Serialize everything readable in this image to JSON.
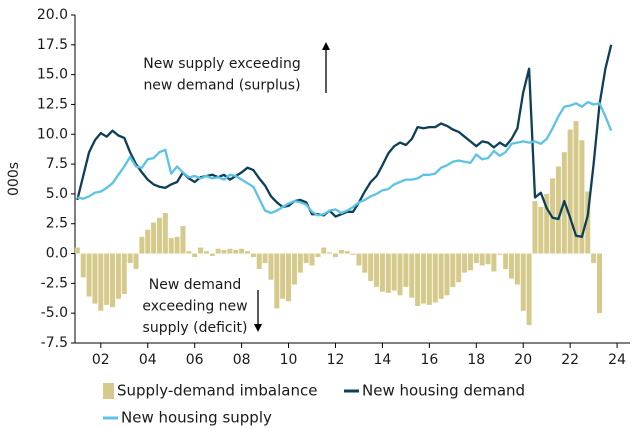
{
  "chart_data": {
    "type": "bar-line",
    "ylabel": "000s",
    "x": [
      2001.0,
      2001.25,
      2001.5,
      2001.75,
      2002.0,
      2002.25,
      2002.5,
      2002.75,
      2003.0,
      2003.25,
      2003.5,
      2003.75,
      2004.0,
      2004.25,
      2004.5,
      2004.75,
      2005.0,
      2005.25,
      2005.5,
      2005.75,
      2006.0,
      2006.25,
      2006.5,
      2006.75,
      2007.0,
      2007.25,
      2007.5,
      2007.75,
      2008.0,
      2008.25,
      2008.5,
      2008.75,
      2009.0,
      2009.25,
      2009.5,
      2009.75,
      2010.0,
      2010.25,
      2010.5,
      2010.75,
      2011.0,
      2011.25,
      2011.5,
      2011.75,
      2012.0,
      2012.25,
      2012.5,
      2012.75,
      2013.0,
      2013.25,
      2013.5,
      2013.75,
      2014.0,
      2014.25,
      2014.5,
      2014.75,
      2015.0,
      2015.25,
      2015.5,
      2015.75,
      2016.0,
      2016.25,
      2016.5,
      2016.75,
      2017.0,
      2017.25,
      2017.5,
      2017.75,
      2018.0,
      2018.25,
      2018.5,
      2018.75,
      2019.0,
      2019.25,
      2019.5,
      2019.75,
      2020.0,
      2020.25,
      2020.5,
      2020.75,
      2021.0,
      2021.25,
      2021.5,
      2021.75,
      2022.0,
      2022.25,
      2022.5,
      2022.75,
      2023.0,
      2023.25,
      2023.5,
      2023.75
    ],
    "series": [
      {
        "name": "Supply-demand imbalance",
        "kind": "bar",
        "color": "#d5ca8b",
        "values": [
          0.5,
          -2.0,
          -3.6,
          -4.2,
          -4.8,
          -4.3,
          -4.5,
          -3.8,
          -3.4,
          -0.8,
          -1.3,
          1.4,
          2.0,
          2.6,
          3.0,
          3.4,
          1.3,
          1.4,
          2.3,
          0.2,
          -0.3,
          0.5,
          0.2,
          -0.2,
          0.4,
          0.3,
          0.4,
          0.3,
          0.4,
          0.2,
          -0.3,
          -1.3,
          -0.8,
          -2.2,
          -4.6,
          -3.8,
          -4.0,
          -2.6,
          -1.6,
          -0.8,
          -1.0,
          -0.3,
          0.5,
          0.1,
          -0.3,
          0.3,
          0.2,
          -0.1,
          -1.0,
          -1.6,
          -2.3,
          -2.8,
          -3.2,
          -3.3,
          -3.1,
          -3.5,
          -2.8,
          -3.7,
          -4.4,
          -4.2,
          -4.3,
          -4.1,
          -3.8,
          -3.5,
          -2.8,
          -2.4,
          -1.6,
          -1.4,
          -0.8,
          -1.0,
          -0.9,
          -1.5,
          -0.1,
          -1.3,
          -2.1,
          -2.6,
          -4.8,
          -6.0,
          4.4,
          3.9,
          5.0,
          6.3,
          7.3,
          8.5,
          10.4,
          11.1,
          9.5,
          5.2,
          -0.8,
          -5.0,
          null,
          null
        ]
      },
      {
        "name": "New housing demand",
        "kind": "line",
        "color": "#0d3f58",
        "values": [
          4.5,
          6.5,
          8.5,
          9.5,
          10.1,
          9.8,
          10.3,
          9.9,
          9.7,
          8.5,
          7.5,
          6.8,
          6.2,
          5.8,
          5.6,
          5.5,
          5.8,
          6.0,
          6.8,
          6.3,
          6.0,
          6.4,
          6.5,
          6.6,
          6.4,
          6.6,
          6.2,
          6.5,
          6.8,
          7.2,
          7.0,
          6.3,
          5.7,
          4.8,
          4.3,
          3.9,
          4.0,
          4.4,
          4.5,
          4.3,
          3.3,
          3.3,
          3.2,
          3.6,
          3.1,
          3.3,
          3.5,
          3.5,
          4.3,
          5.2,
          6.0,
          6.5,
          7.4,
          8.4,
          9.0,
          9.3,
          9.1,
          9.6,
          10.6,
          10.5,
          10.6,
          10.6,
          10.9,
          10.7,
          10.4,
          10.2,
          9.8,
          9.4,
          9.0,
          9.4,
          9.3,
          8.9,
          9.3,
          9.0,
          9.6,
          10.5,
          13.5,
          15.5,
          4.7,
          5.1,
          3.8,
          3.0,
          2.9,
          4.4,
          3.0,
          1.5,
          1.4,
          3.2,
          7.5,
          12.5,
          15.5,
          17.5
        ]
      },
      {
        "name": "New housing supply",
        "kind": "line",
        "color": "#5cc3e6",
        "values": [
          4.7,
          4.6,
          4.8,
          5.1,
          5.2,
          5.5,
          5.9,
          6.6,
          7.3,
          8.1,
          7.3,
          7.2,
          7.9,
          8.0,
          8.5,
          8.7,
          6.7,
          7.3,
          6.8,
          6.4,
          6.5,
          6.3,
          6.5,
          6.3,
          6.4,
          6.2,
          6.6,
          6.5,
          6.2,
          5.9,
          5.6,
          4.6,
          3.6,
          3.4,
          3.6,
          3.9,
          4.2,
          4.4,
          4.3,
          4.1,
          3.5,
          3.2,
          3.3,
          3.6,
          3.7,
          3.4,
          3.6,
          3.9,
          4.3,
          4.5,
          4.8,
          5.0,
          5.3,
          5.4,
          5.8,
          6.0,
          6.2,
          6.2,
          6.3,
          6.6,
          6.6,
          6.7,
          7.2,
          7.4,
          7.7,
          7.8,
          7.7,
          7.6,
          8.3,
          7.9,
          8.0,
          8.6,
          8.2,
          8.5,
          9.2,
          9.3,
          9.4,
          9.3,
          9.4,
          9.2,
          9.6,
          10.5,
          11.5,
          12.3,
          12.4,
          12.6,
          12.3,
          12.7,
          12.5,
          12.6,
          11.5,
          10.3
        ]
      }
    ],
    "xlim": [
      2000.9,
      2024.55
    ],
    "xticks": [
      {
        "value": 2002,
        "label": "02"
      },
      {
        "value": 2004,
        "label": "04"
      },
      {
        "value": 2006,
        "label": "06"
      },
      {
        "value": 2008,
        "label": "08"
      },
      {
        "value": 2010,
        "label": "10"
      },
      {
        "value": 2012,
        "label": "12"
      },
      {
        "value": 2014,
        "label": "14"
      },
      {
        "value": 2016,
        "label": "16"
      },
      {
        "value": 2018,
        "label": "18"
      },
      {
        "value": 2020,
        "label": "20"
      },
      {
        "value": 2022,
        "label": "22"
      },
      {
        "value": 2024,
        "label": "24"
      }
    ],
    "ylim": [
      -7.5,
      20
    ],
    "yticks": [
      {
        "value": 20,
        "label": "20.0"
      },
      17.5,
      {
        "value": 15,
        "label": "15.0"
      },
      12.5,
      {
        "value": 10,
        "label": "10.0"
      },
      7.5,
      {
        "value": 5,
        "label": "5.0"
      },
      2.5,
      {
        "value": 0,
        "label": "0.0"
      },
      -2.5,
      {
        "value": -5,
        "label": "-5.0"
      },
      -7.5
    ],
    "annotations": [
      [
        "New supply exceeding",
        "new demand (surplus)"
      ],
      [
        "New demand",
        "exceeding new",
        "supply (deficit)"
      ]
    ]
  }
}
